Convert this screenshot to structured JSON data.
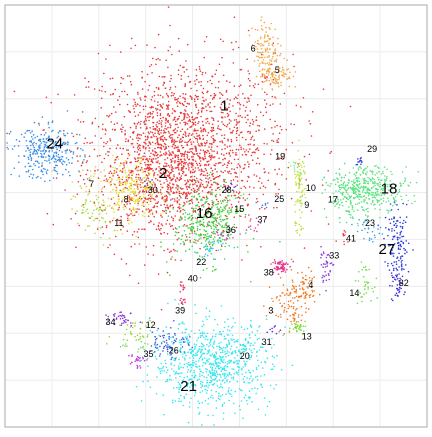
{
  "chart_data": {
    "type": "scatter",
    "title": "",
    "xlabel": "",
    "ylabel": "",
    "xlim": [
      0,
      100
    ],
    "ylim": [
      0,
      100
    ],
    "grid": true,
    "legend": "none",
    "series": [
      {
        "name": "1",
        "color": "#e83a3a",
        "cx": 44,
        "cy": 68,
        "sx": 12,
        "sy": 10,
        "n": 1300
      },
      {
        "name": "2",
        "color": "#e83a3a",
        "cx": 38,
        "cy": 60,
        "sx": 8,
        "sy": 8,
        "n": 900
      },
      {
        "name": "3",
        "color": "#ef7b24",
        "cx": 67,
        "cy": 29,
        "sx": 2.5,
        "sy": 3,
        "n": 90
      },
      {
        "name": "4",
        "color": "#ef7b24",
        "cx": 71,
        "cy": 33,
        "sx": 1.5,
        "sy": 2,
        "n": 60
      },
      {
        "name": "5",
        "color": "#f5a84a",
        "cx": 64,
        "cy": 84,
        "sx": 2,
        "sy": 2,
        "n": 120
      },
      {
        "name": "6",
        "color": "#f5a84a",
        "cx": 61.5,
        "cy": 91,
        "sx": 1.5,
        "sy": 2.5,
        "n": 90
      },
      {
        "name": "7",
        "color": "#f2c04d",
        "cx": 20,
        "cy": 58,
        "sx": 3,
        "sy": 3,
        "n": 30
      },
      {
        "name": "8",
        "color": "#e8dc26",
        "cx": 30,
        "cy": 56,
        "sx": 3,
        "sy": 4,
        "n": 200
      },
      {
        "name": "9",
        "color": "#b9e03c",
        "cx": 70,
        "cy": 52,
        "sx": 0.6,
        "sy": 4,
        "n": 40
      },
      {
        "name": "10",
        "color": "#c5e84a",
        "cx": 70,
        "cy": 58,
        "sx": 0.8,
        "sy": 3,
        "n": 50
      },
      {
        "name": "11",
        "color": "#a8e03a",
        "cx": 21,
        "cy": 50,
        "sx": 2.5,
        "sy": 3.5,
        "n": 60
      },
      {
        "name": "12",
        "color": "#8ed53a",
        "cx": 31,
        "cy": 22,
        "sx": 2.5,
        "sy": 2,
        "n": 50
      },
      {
        "name": "13",
        "color": "#7fdc40",
        "cx": 69.5,
        "cy": 24,
        "sx": 1.5,
        "sy": 0.8,
        "n": 30
      },
      {
        "name": "14",
        "color": "#6fde4a",
        "cx": 85,
        "cy": 34,
        "sx": 1,
        "sy": 2,
        "n": 35
      },
      {
        "name": "15",
        "color": "#5ad448",
        "cx": 53,
        "cy": 52,
        "sx": 1.5,
        "sy": 1.5,
        "n": 30
      },
      {
        "name": "16",
        "color": "#45d04a",
        "cx": 48,
        "cy": 48,
        "sx": 4,
        "sy": 4.5,
        "n": 350
      },
      {
        "name": "17",
        "color": "#55e07a",
        "cx": 82,
        "cy": 55,
        "sx": 3,
        "sy": 3,
        "n": 200
      },
      {
        "name": "18",
        "color": "#60e585",
        "cx": 88,
        "cy": 57,
        "sx": 4,
        "sy": 2.5,
        "n": 250
      },
      {
        "name": "19",
        "color": "#7ee8a0",
        "cx": 69,
        "cy": 62,
        "sx": 1,
        "sy": 1,
        "n": 10
      },
      {
        "name": "20",
        "color": "#3de0d0",
        "cx": 57,
        "cy": 19,
        "sx": 1,
        "sy": 1,
        "n": 12
      },
      {
        "name": "21",
        "color": "#35e6f0",
        "cx": 49,
        "cy": 15,
        "sx": 7,
        "sy": 5,
        "n": 800
      },
      {
        "name": "22",
        "color": "#39c8e8",
        "cx": 49,
        "cy": 42,
        "sx": 1.5,
        "sy": 1.5,
        "n": 30
      },
      {
        "name": "23",
        "color": "#3ca0e8",
        "cx": 86,
        "cy": 47,
        "sx": 1.5,
        "sy": 1.5,
        "n": 25
      },
      {
        "name": "24",
        "color": "#3a8fe5",
        "cx": 10,
        "cy": 65,
        "sx": 4,
        "sy": 3,
        "n": 300
      },
      {
        "name": "25",
        "color": "#3b7fe3",
        "cx": 62,
        "cy": 53,
        "sx": 0.8,
        "sy": 0.8,
        "n": 6
      },
      {
        "name": "26",
        "color": "#3a5fe0",
        "cx": 39,
        "cy": 20,
        "sx": 2.5,
        "sy": 2,
        "n": 70
      },
      {
        "name": "27",
        "color": "#2f3de0",
        "cx": 93,
        "cy": 43,
        "sx": 1.5,
        "sy": 4,
        "n": 130
      },
      {
        "name": "28",
        "color": "#3a45e5",
        "cx": 53,
        "cy": 57,
        "sx": 0.8,
        "sy": 0.8,
        "n": 8
      },
      {
        "name": "29",
        "color": "#3540e0",
        "cx": 84,
        "cy": 63,
        "sx": 0.6,
        "sy": 0.6,
        "n": 12
      },
      {
        "name": "30",
        "color": "#4030c8",
        "cx": 34,
        "cy": 58,
        "sx": 0.8,
        "sy": 0.8,
        "n": 6
      },
      {
        "name": "31",
        "color": "#5a2fd8",
        "cx": 64,
        "cy": 23,
        "sx": 0.6,
        "sy": 0.6,
        "n": 8
      },
      {
        "name": "32",
        "color": "#4030d8",
        "cx": 93,
        "cy": 34,
        "sx": 0.8,
        "sy": 2,
        "n": 40
      },
      {
        "name": "33",
        "color": "#8a3ee0",
        "cx": 76,
        "cy": 38,
        "sx": 1,
        "sy": 2,
        "n": 40
      },
      {
        "name": "34",
        "color": "#8a2fe0",
        "cx": 28,
        "cy": 26,
        "sx": 1.5,
        "sy": 1,
        "n": 35
      },
      {
        "name": "35",
        "color": "#c23ae0",
        "cx": 31,
        "cy": 16,
        "sx": 1,
        "sy": 1,
        "n": 25
      },
      {
        "name": "36",
        "color": "#e03ad8",
        "cx": 52,
        "cy": 46,
        "sx": 1.5,
        "sy": 1,
        "n": 15
      },
      {
        "name": "37",
        "color": "#e83ab0",
        "cx": 59,
        "cy": 48,
        "sx": 1,
        "sy": 1,
        "n": 10
      },
      {
        "name": "38",
        "color": "#e8338a",
        "cx": 65,
        "cy": 38,
        "sx": 1,
        "sy": 1,
        "n": 60
      },
      {
        "name": "39",
        "color": "#e83366",
        "cx": 42,
        "cy": 30,
        "sx": 0.6,
        "sy": 0.6,
        "n": 10
      },
      {
        "name": "40",
        "color": "#e8335a",
        "cx": 42,
        "cy": 33,
        "sx": 0.6,
        "sy": 0.6,
        "n": 10
      },
      {
        "name": "41",
        "color": "#e83a50",
        "cx": 80,
        "cy": 45,
        "sx": 1,
        "sy": 1,
        "n": 10
      }
    ],
    "labels": [
      {
        "text": "1",
        "x": 52,
        "y": 76,
        "big": true
      },
      {
        "text": "2",
        "x": 37.5,
        "y": 60,
        "big": true
      },
      {
        "text": "3",
        "x": 63,
        "y": 27.5,
        "big": false
      },
      {
        "text": "4",
        "x": 72.5,
        "y": 33.5,
        "big": false
      },
      {
        "text": "5",
        "x": 64.5,
        "y": 84.5,
        "big": false
      },
      {
        "text": "6",
        "x": 58.8,
        "y": 89.5,
        "big": false
      },
      {
        "text": "7",
        "x": 20.5,
        "y": 57.5,
        "big": false
      },
      {
        "text": "8",
        "x": 28.7,
        "y": 53.8,
        "big": false
      },
      {
        "text": "9",
        "x": 71.5,
        "y": 52.5,
        "big": false
      },
      {
        "text": "10",
        "x": 72.5,
        "y": 56.5,
        "big": false
      },
      {
        "text": "11",
        "x": 27,
        "y": 48.2,
        "big": false
      },
      {
        "text": "12",
        "x": 34.5,
        "y": 24,
        "big": false
      },
      {
        "text": "13",
        "x": 71.5,
        "y": 21.3,
        "big": false
      },
      {
        "text": "14",
        "x": 82.8,
        "y": 31.6,
        "big": false
      },
      {
        "text": "15",
        "x": 55.5,
        "y": 51.5,
        "big": false
      },
      {
        "text": "16",
        "x": 47.2,
        "y": 50.5,
        "big": true
      },
      {
        "text": "17",
        "x": 77.7,
        "y": 53.8,
        "big": false
      },
      {
        "text": "18",
        "x": 91,
        "y": 56.3,
        "big": true
      },
      {
        "text": "19",
        "x": 65.2,
        "y": 63.9,
        "big": false
      },
      {
        "text": "20",
        "x": 56.8,
        "y": 16.7,
        "big": false
      },
      {
        "text": "21",
        "x": 43.5,
        "y": 9.5,
        "big": true
      },
      {
        "text": "22",
        "x": 46.5,
        "y": 39,
        "big": false
      },
      {
        "text": "23",
        "x": 86.5,
        "y": 48.2,
        "big": false
      },
      {
        "text": "24",
        "x": 11.8,
        "y": 67,
        "big": true
      },
      {
        "text": "25",
        "x": 65,
        "y": 53.9,
        "big": false
      },
      {
        "text": "26",
        "x": 40,
        "y": 18,
        "big": false
      },
      {
        "text": "27",
        "x": 90.5,
        "y": 42,
        "big": true
      },
      {
        "text": "28",
        "x": 52.5,
        "y": 56,
        "big": false
      },
      {
        "text": "29",
        "x": 87,
        "y": 65.7,
        "big": false
      },
      {
        "text": "30",
        "x": 35,
        "y": 56,
        "big": false
      },
      {
        "text": "31",
        "x": 62,
        "y": 20,
        "big": false
      },
      {
        "text": "32",
        "x": 94.5,
        "y": 34,
        "big": false
      },
      {
        "text": "33",
        "x": 78,
        "y": 40.5,
        "big": false
      },
      {
        "text": "34",
        "x": 25,
        "y": 24.7,
        "big": false
      },
      {
        "text": "35",
        "x": 34,
        "y": 17.2,
        "big": false
      },
      {
        "text": "36",
        "x": 53.5,
        "y": 46.5,
        "big": false
      },
      {
        "text": "37",
        "x": 61,
        "y": 49,
        "big": false
      },
      {
        "text": "38",
        "x": 62.5,
        "y": 36.5,
        "big": false
      },
      {
        "text": "39",
        "x": 41.5,
        "y": 27.5,
        "big": false
      },
      {
        "text": "40",
        "x": 44.5,
        "y": 35,
        "big": false
      },
      {
        "text": "41",
        "x": 82,
        "y": 44.5,
        "big": false
      }
    ]
  }
}
